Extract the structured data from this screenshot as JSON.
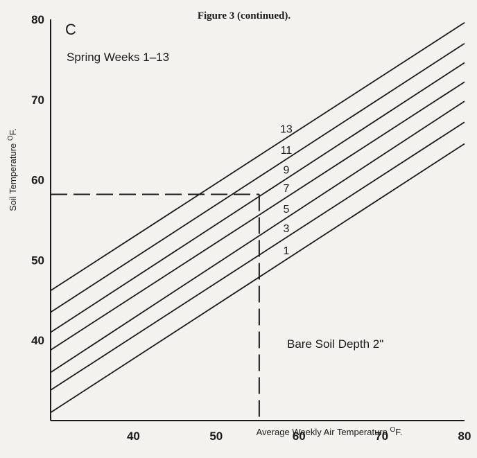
{
  "figure_title": "Figure 3 (continued).",
  "chart_data": {
    "type": "line",
    "panel_letter": "C",
    "subtitle": "Spring Weeks 1–13",
    "annotation": "Bare Soil Depth 2\"",
    "xlabel": "Average Weekly Air Temperature",
    "xlabel_unit": "OF.",
    "ylabel": "Soil Temperature",
    "ylabel_unit": "OF.",
    "xlim": [
      30,
      80
    ],
    "ylim": [
      30,
      80
    ],
    "x_ticks": [
      40,
      50,
      60,
      70,
      80
    ],
    "y_ticks": [
      40,
      50,
      60,
      70,
      80
    ],
    "series": [
      {
        "name": "1",
        "x": [
          30,
          80
        ],
        "y": [
          31,
          64.5
        ]
      },
      {
        "name": "3",
        "x": [
          30,
          80
        ],
        "y": [
          33.8,
          67.2
        ]
      },
      {
        "name": "5",
        "x": [
          30,
          80
        ],
        "y": [
          36,
          69.8
        ]
      },
      {
        "name": "7",
        "x": [
          30,
          80
        ],
        "y": [
          38.8,
          72.2
        ]
      },
      {
        "name": "9",
        "x": [
          30,
          80
        ],
        "y": [
          41,
          74.6
        ]
      },
      {
        "name": "11",
        "x": [
          30,
          80
        ],
        "y": [
          43.5,
          77
        ]
      },
      {
        "name": "13",
        "x": [
          30,
          80
        ],
        "y": [
          46.2,
          79.6
        ]
      }
    ],
    "reference": {
      "x": 55.2,
      "y": 58.2,
      "style": "dashed"
    },
    "grid": false,
    "legend": "inline labels on lines"
  }
}
